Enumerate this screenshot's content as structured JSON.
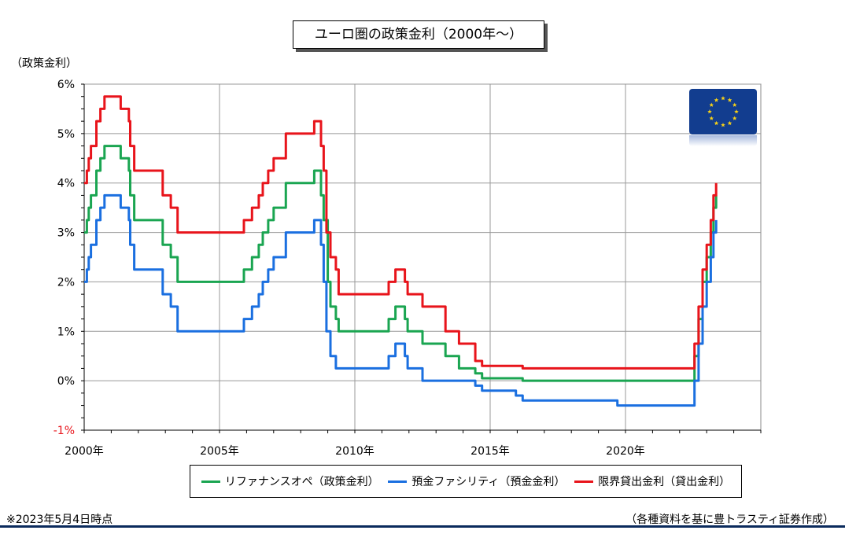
{
  "title": "ユーロ圏の政策金利（2000年～）",
  "y_axis_label": "（政策金利）",
  "footnote_left": "※2023年5月4日時点",
  "footnote_right": "（各種資料を基に豊トラスティ証券作成）",
  "legend": [
    {
      "label": "リファナンスオペ（政策金利）",
      "color": "#1aa551"
    },
    {
      "label": "預金ファシリティ（預金金利）",
      "color": "#1a6fe0"
    },
    {
      "label": "限界貸出金利（貸出金利）",
      "color": "#e8141b"
    }
  ],
  "flag_icon": "eu-flag-icon",
  "chart_data": {
    "type": "line",
    "title": "ユーロ圏の政策金利（2000年～）",
    "ylabel": "（政策金利）",
    "xlabel": "",
    "xlim": [
      2000,
      2025
    ],
    "ylim": [
      -1,
      6
    ],
    "x_ticks": [
      {
        "value": 2000,
        "label": "2000年"
      },
      {
        "value": 2005,
        "label": "2005年"
      },
      {
        "value": 2010,
        "label": "2010年"
      },
      {
        "value": 2015,
        "label": "2015年"
      },
      {
        "value": 2020,
        "label": "2020年"
      }
    ],
    "y_ticks": [
      {
        "value": 6,
        "label": "6%"
      },
      {
        "value": 5,
        "label": "5%"
      },
      {
        "value": 4,
        "label": "4%"
      },
      {
        "value": 3,
        "label": "3%"
      },
      {
        "value": 2,
        "label": "2%"
      },
      {
        "value": 1,
        "label": "1%"
      },
      {
        "value": 0,
        "label": "0%"
      },
      {
        "value": -1,
        "label": "-1%",
        "color": "#e8141b"
      }
    ],
    "grid": true,
    "series": [
      {
        "name": "リファナンスオペ（政策金利）",
        "color": "#1aa551",
        "points": [
          [
            2000.0,
            3.0
          ],
          [
            2000.1,
            3.25
          ],
          [
            2000.17,
            3.5
          ],
          [
            2000.25,
            3.75
          ],
          [
            2000.45,
            4.25
          ],
          [
            2000.6,
            4.5
          ],
          [
            2000.75,
            4.75
          ],
          [
            2001.35,
            4.5
          ],
          [
            2001.65,
            4.25
          ],
          [
            2001.7,
            3.75
          ],
          [
            2001.85,
            3.25
          ],
          [
            2002.9,
            2.75
          ],
          [
            2003.2,
            2.5
          ],
          [
            2003.45,
            2.0
          ],
          [
            2005.9,
            2.25
          ],
          [
            2006.2,
            2.5
          ],
          [
            2006.45,
            2.75
          ],
          [
            2006.6,
            3.0
          ],
          [
            2006.8,
            3.25
          ],
          [
            2007.0,
            3.5
          ],
          [
            2007.45,
            4.0
          ],
          [
            2008.5,
            4.25
          ],
          [
            2008.75,
            3.75
          ],
          [
            2008.85,
            3.25
          ],
          [
            2009.0,
            2.0
          ],
          [
            2009.1,
            1.5
          ],
          [
            2009.3,
            1.25
          ],
          [
            2009.4,
            1.0
          ],
          [
            2011.25,
            1.25
          ],
          [
            2011.5,
            1.5
          ],
          [
            2011.85,
            1.25
          ],
          [
            2011.95,
            1.0
          ],
          [
            2012.5,
            0.75
          ],
          [
            2013.35,
            0.5
          ],
          [
            2013.85,
            0.25
          ],
          [
            2014.45,
            0.15
          ],
          [
            2014.7,
            0.05
          ],
          [
            2016.2,
            0.0
          ],
          [
            2022.55,
            0.5
          ],
          [
            2022.7,
            1.25
          ],
          [
            2022.85,
            2.0
          ],
          [
            2023.0,
            2.5
          ],
          [
            2023.15,
            3.0
          ],
          [
            2023.25,
            3.5
          ],
          [
            2023.35,
            3.75
          ]
        ]
      },
      {
        "name": "預金ファシリティ（預金金利）",
        "color": "#1a6fe0",
        "points": [
          [
            2000.0,
            2.0
          ],
          [
            2000.1,
            2.25
          ],
          [
            2000.17,
            2.5
          ],
          [
            2000.25,
            2.75
          ],
          [
            2000.45,
            3.25
          ],
          [
            2000.6,
            3.5
          ],
          [
            2000.75,
            3.75
          ],
          [
            2001.35,
            3.5
          ],
          [
            2001.65,
            3.25
          ],
          [
            2001.7,
            2.75
          ],
          [
            2001.85,
            2.25
          ],
          [
            2002.9,
            1.75
          ],
          [
            2003.2,
            1.5
          ],
          [
            2003.45,
            1.0
          ],
          [
            2005.9,
            1.25
          ],
          [
            2006.2,
            1.5
          ],
          [
            2006.45,
            1.75
          ],
          [
            2006.6,
            2.0
          ],
          [
            2006.8,
            2.25
          ],
          [
            2007.0,
            2.5
          ],
          [
            2007.45,
            3.0
          ],
          [
            2008.5,
            3.25
          ],
          [
            2008.75,
            2.75
          ],
          [
            2008.85,
            2.0
          ],
          [
            2008.95,
            1.0
          ],
          [
            2009.1,
            0.5
          ],
          [
            2009.3,
            0.25
          ],
          [
            2011.25,
            0.5
          ],
          [
            2011.5,
            0.75
          ],
          [
            2011.85,
            0.5
          ],
          [
            2011.95,
            0.25
          ],
          [
            2012.5,
            0.0
          ],
          [
            2014.45,
            -0.1
          ],
          [
            2014.7,
            -0.2
          ],
          [
            2015.95,
            -0.3
          ],
          [
            2016.2,
            -0.4
          ],
          [
            2019.7,
            -0.5
          ],
          [
            2022.55,
            0.0
          ],
          [
            2022.7,
            0.75
          ],
          [
            2022.85,
            1.5
          ],
          [
            2023.0,
            2.0
          ],
          [
            2023.15,
            2.5
          ],
          [
            2023.25,
            3.0
          ],
          [
            2023.35,
            3.25
          ]
        ]
      },
      {
        "name": "限界貸出金利（貸出金利）",
        "color": "#e8141b",
        "points": [
          [
            2000.0,
            4.0
          ],
          [
            2000.1,
            4.25
          ],
          [
            2000.17,
            4.5
          ],
          [
            2000.25,
            4.75
          ],
          [
            2000.45,
            5.25
          ],
          [
            2000.6,
            5.5
          ],
          [
            2000.75,
            5.75
          ],
          [
            2001.35,
            5.5
          ],
          [
            2001.65,
            5.25
          ],
          [
            2001.7,
            4.75
          ],
          [
            2001.85,
            4.25
          ],
          [
            2002.9,
            3.75
          ],
          [
            2003.2,
            3.5
          ],
          [
            2003.45,
            3.0
          ],
          [
            2005.9,
            3.25
          ],
          [
            2006.2,
            3.5
          ],
          [
            2006.45,
            3.75
          ],
          [
            2006.6,
            4.0
          ],
          [
            2006.8,
            4.25
          ],
          [
            2007.0,
            4.5
          ],
          [
            2007.45,
            5.0
          ],
          [
            2008.5,
            5.25
          ],
          [
            2008.75,
            4.75
          ],
          [
            2008.85,
            4.25
          ],
          [
            2008.95,
            3.0
          ],
          [
            2009.1,
            2.5
          ],
          [
            2009.3,
            2.25
          ],
          [
            2009.4,
            1.75
          ],
          [
            2011.25,
            2.0
          ],
          [
            2011.5,
            2.25
          ],
          [
            2011.85,
            2.0
          ],
          [
            2011.95,
            1.75
          ],
          [
            2012.5,
            1.5
          ],
          [
            2013.35,
            1.0
          ],
          [
            2013.85,
            0.75
          ],
          [
            2014.45,
            0.4
          ],
          [
            2014.7,
            0.3
          ],
          [
            2016.2,
            0.25
          ],
          [
            2022.55,
            0.75
          ],
          [
            2022.7,
            1.5
          ],
          [
            2022.85,
            2.25
          ],
          [
            2023.0,
            2.75
          ],
          [
            2023.15,
            3.25
          ],
          [
            2023.25,
            3.75
          ],
          [
            2023.35,
            4.0
          ]
        ]
      }
    ]
  }
}
